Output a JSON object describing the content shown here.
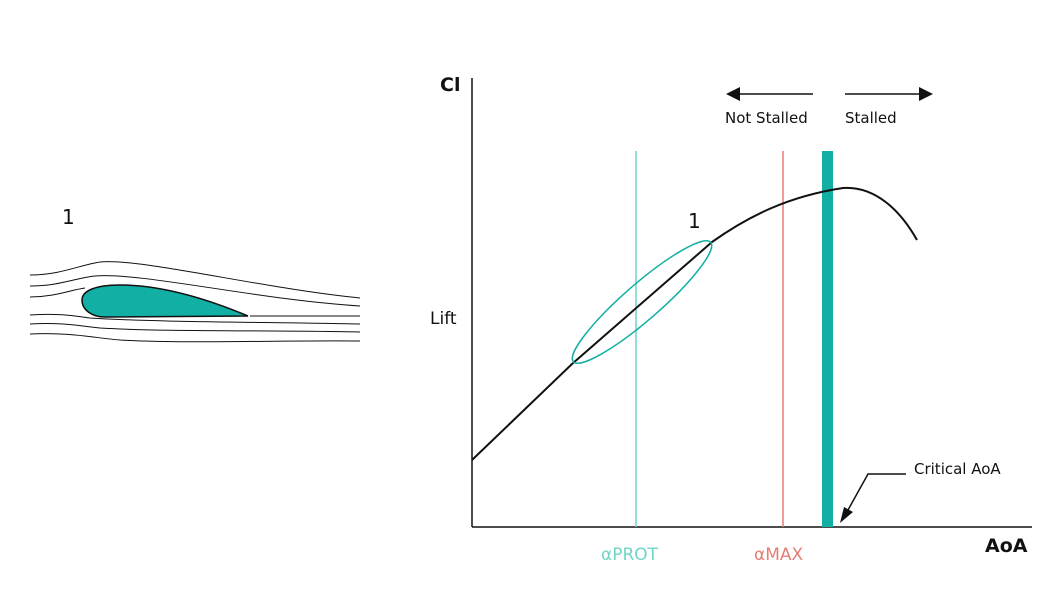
{
  "airfoil_panel": {
    "label": "1",
    "airfoil_color": "#12B0A4"
  },
  "chart": {
    "y_axis_label": "Cl",
    "x_axis_label": "AoA",
    "y_mid_label": "Lift",
    "point_label": "1",
    "regions": {
      "left": "Not Stalled",
      "right": "Stalled"
    },
    "markers": {
      "alpha_prot": {
        "label": "αPROT",
        "color": "#6FD6C7"
      },
      "alpha_max": {
        "label": "αMAX",
        "color": "#E57D74"
      },
      "critical": {
        "label": "Critical AoA",
        "color": "#12B0A4"
      }
    },
    "curve_color": "#111111",
    "highlight_color": "#12B0A4"
  }
}
